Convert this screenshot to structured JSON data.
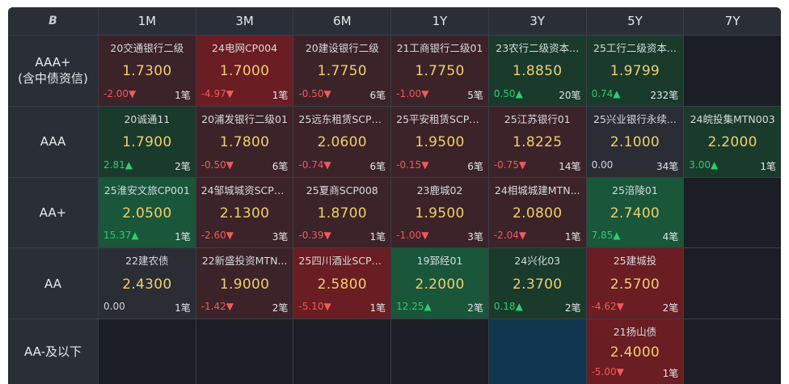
{
  "header": {
    "logo": "Β",
    "columns": [
      "1M",
      "3M",
      "6M",
      "1Y",
      "3Y",
      "5Y",
      "7Y"
    ]
  },
  "rows": [
    {
      "label_line1": "AAA+",
      "label_line2": "(含中债资信)",
      "cells": [
        {
          "name": "20交通银行二级",
          "rate": "1.7300",
          "chg": "-2.00▼",
          "dir": "down",
          "cnt": "1笔",
          "bg": "red2"
        },
        {
          "name": "24电网CP004",
          "rate": "1.7000",
          "chg": "-4.97▼",
          "dir": "down",
          "cnt": "1笔",
          "bg": "red"
        },
        {
          "name": "20建设银行二级",
          "rate": "1.7750",
          "chg": "-0.50▼",
          "dir": "down",
          "cnt": "6笔",
          "bg": "red2"
        },
        {
          "name": "21工商银行二级01",
          "rate": "1.7750",
          "chg": "-1.00▼",
          "dir": "down",
          "cnt": "5笔",
          "bg": "red2"
        },
        {
          "name": "23农行二级资本...",
          "rate": "1.8850",
          "chg": "0.50▲",
          "dir": "up",
          "cnt": "20笔",
          "bg": "green2"
        },
        {
          "name": "25工行二级资本...",
          "rate": "1.9799",
          "chg": "0.74▲",
          "dir": "up",
          "cnt": "232笔",
          "bg": "green2"
        },
        null
      ]
    },
    {
      "label_line1": "AAA",
      "label_line2": "",
      "cells": [
        {
          "name": "20诚通11",
          "rate": "1.7900",
          "chg": "2.81▲",
          "dir": "up",
          "cnt": "2笔",
          "bg": "green2"
        },
        {
          "name": "20浦发银行二级01",
          "rate": "1.7800",
          "chg": "-0.50▼",
          "dir": "down",
          "cnt": "6笔",
          "bg": "red2"
        },
        {
          "name": "25远东租赁SCP0...",
          "rate": "2.0600",
          "chg": "-0.74▼",
          "dir": "down",
          "cnt": "6笔",
          "bg": "red2"
        },
        {
          "name": "25平安租赁SCP0...",
          "rate": "1.9500",
          "chg": "-0.15▼",
          "dir": "down",
          "cnt": "6笔",
          "bg": "red2"
        },
        {
          "name": "25江苏银行01",
          "rate": "1.8225",
          "chg": "-0.75▼",
          "dir": "down",
          "cnt": "14笔",
          "bg": "red2"
        },
        {
          "name": "25兴业银行永续...",
          "rate": "2.1000",
          "chg": "0.00",
          "dir": "flat",
          "cnt": "34笔",
          "bg": "dark"
        },
        {
          "name": "24皖投集MTN003",
          "rate": "2.2000",
          "chg": "3.00▲",
          "dir": "up",
          "cnt": "1笔",
          "bg": "green2"
        }
      ]
    },
    {
      "label_line1": "AA+",
      "label_line2": "",
      "cells": [
        {
          "name": "25淮安文旅CP001",
          "rate": "2.0500",
          "chg": "15.37▲",
          "dir": "up",
          "cnt": "1笔",
          "bg": "green"
        },
        {
          "name": "24邹城城资SCP0...",
          "rate": "2.1300",
          "chg": "-2.60▼",
          "dir": "down",
          "cnt": "3笔",
          "bg": "red2"
        },
        {
          "name": "25夏商SCP008",
          "rate": "1.8700",
          "chg": "-0.39▼",
          "dir": "down",
          "cnt": "1笔",
          "bg": "red2"
        },
        {
          "name": "23鹿城02",
          "rate": "1.9500",
          "chg": "-1.00▼",
          "dir": "down",
          "cnt": "3笔",
          "bg": "red2"
        },
        {
          "name": "24相城城建MTN...",
          "rate": "2.0800",
          "chg": "-2.04▼",
          "dir": "down",
          "cnt": "1笔",
          "bg": "red2"
        },
        {
          "name": "25涪陵01",
          "rate": "2.7400",
          "chg": "7.85▲",
          "dir": "up",
          "cnt": "4笔",
          "bg": "green"
        },
        null
      ]
    },
    {
      "label_line1": "AA",
      "label_line2": "",
      "cells": [
        {
          "name": "22建农债",
          "rate": "2.4300",
          "chg": "0.00",
          "dir": "flat",
          "cnt": "1笔",
          "bg": "dark"
        },
        {
          "name": "22新盛投资MTN...",
          "rate": "1.9000",
          "chg": "-1.42▼",
          "dir": "down",
          "cnt": "2笔",
          "bg": "red2"
        },
        {
          "name": "25四川酒业SCP0...",
          "rate": "2.5800",
          "chg": "-5.10▼",
          "dir": "down",
          "cnt": "1笔",
          "bg": "red"
        },
        {
          "name": "19郅经01",
          "rate": "2.2000",
          "chg": "12.25▲",
          "dir": "up",
          "cnt": "2笔",
          "bg": "green"
        },
        {
          "name": "24兴化03",
          "rate": "2.3700",
          "chg": "0.18▲",
          "dir": "up",
          "cnt": "2笔",
          "bg": "green2"
        },
        {
          "name": "25建城投",
          "rate": "2.5700",
          "chg": "-4.62▼",
          "dir": "down",
          "cnt": "2笔",
          "bg": "red"
        },
        null
      ]
    },
    {
      "label_line1": "AA-及以下",
      "label_line2": "",
      "cells": [
        null,
        null,
        null,
        null,
        {
          "blank": true,
          "bg": "blue"
        },
        {
          "name": "21扬山债",
          "rate": "2.4000",
          "chg": "-5.00▼",
          "dir": "down",
          "cnt": "1笔",
          "bg": "red"
        },
        null
      ]
    }
  ]
}
